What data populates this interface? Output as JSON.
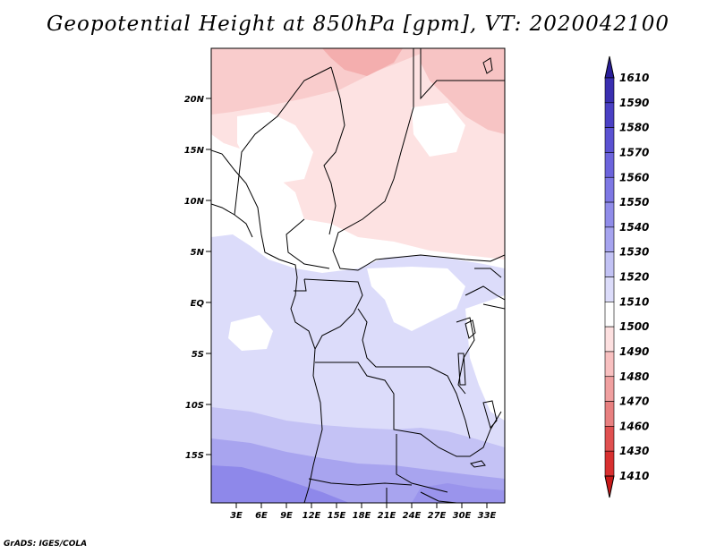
{
  "title": "Geopotential Height at 850hPa [gpm], VT: 2020042100",
  "footer": "GrADS: IGES/COLA",
  "lat_labels": [
    "20N",
    "15N",
    "10N",
    "5N",
    "EQ",
    "5S",
    "10S",
    "15S"
  ],
  "lon_labels": [
    "3E",
    "6E",
    "9E",
    "12E",
    "15E",
    "18E",
    "21E",
    "24E",
    "27E",
    "30E",
    "33E"
  ],
  "colorbar": {
    "labels": [
      "1610",
      "1590",
      "1580",
      "1570",
      "1560",
      "1550",
      "1540",
      "1530",
      "1520",
      "1510",
      "1500",
      "1490",
      "1480",
      "1470",
      "1460",
      "1430",
      "1410"
    ],
    "colors": [
      "#2a1e9a",
      "#3a2fb0",
      "#4a40c4",
      "#5b52d2",
      "#6c64dc",
      "#7e78e4",
      "#908ce9",
      "#a6a4ef",
      "#c2c2f4",
      "#dcdcfa",
      "#ffffff",
      "#fde0e0",
      "#f8c0c0",
      "#f0a0a0",
      "#e88080",
      "#e05050",
      "#d83030",
      "#c81818"
    ],
    "top_color": "#2a1e9a",
    "bottom_color": "#c81818"
  }
}
